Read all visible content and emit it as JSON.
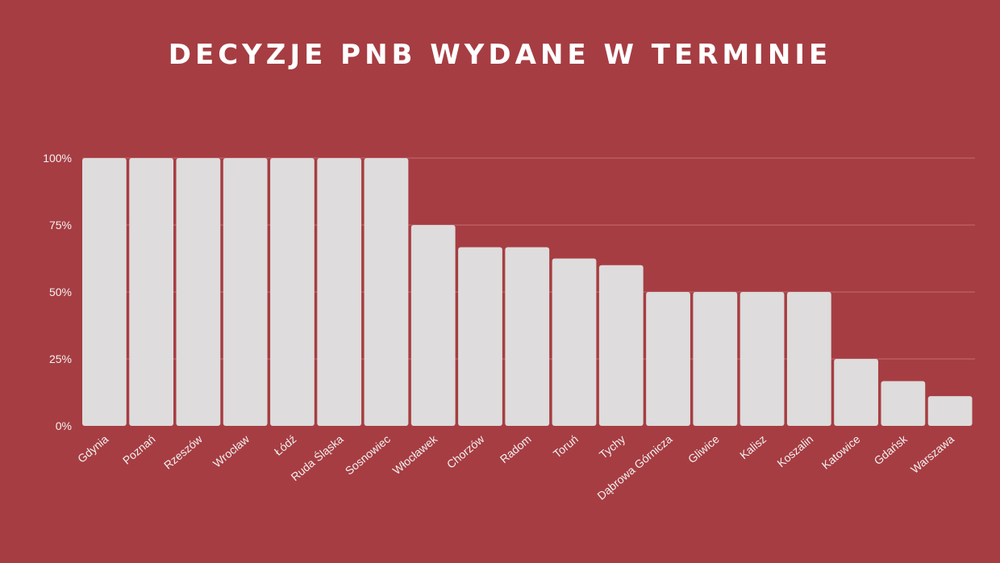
{
  "chart_data": {
    "type": "bar",
    "title": "DECYZJE PNB WYDANE W TERMINIE",
    "categories": [
      "Gdynia",
      "Poznań",
      "Rzeszów",
      "Wrocław",
      "Łódź",
      "Ruda Śląska",
      "Sosnowiec",
      "Włocławek",
      "Chorzów",
      "Radom",
      "Toruń",
      "Tychy",
      "Dąbrowa Górnicza",
      "Gliwice",
      "Kalisz",
      "Koszalin",
      "Katowice",
      "Gdańsk",
      "Warszawa"
    ],
    "values": [
      100,
      100,
      100,
      100,
      100,
      100,
      100,
      75,
      66.7,
      66.7,
      62.5,
      60,
      50,
      50,
      50,
      50,
      25,
      16.7,
      11.1
    ],
    "ylim": [
      0,
      100
    ],
    "yticks": [
      0,
      25,
      50,
      75,
      100
    ],
    "ytick_labels": [
      "0%",
      "25%",
      "50%",
      "75%",
      "100%"
    ],
    "grid": true,
    "colors": {
      "background": "#a63d42",
      "bar": "#dedcdc",
      "text": "#f2f2f2",
      "grid": "#c26d71"
    }
  }
}
